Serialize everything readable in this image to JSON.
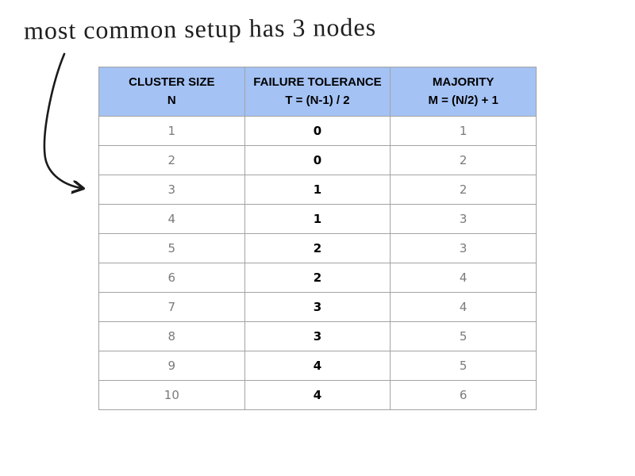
{
  "annotation": {
    "text": "most common setup has 3 nodes"
  },
  "table": {
    "headers": [
      {
        "title": "CLUSTER SIZE",
        "formula": "N"
      },
      {
        "title": "FAILURE TOLERANCE",
        "formula": "T = (N-1) / 2"
      },
      {
        "title": "MAJORITY",
        "formula": "M = (N/2) + 1"
      }
    ],
    "rows": [
      {
        "n": "1",
        "t": "0",
        "m": "1"
      },
      {
        "n": "2",
        "t": "0",
        "m": "2"
      },
      {
        "n": "3",
        "t": "1",
        "m": "2"
      },
      {
        "n": "4",
        "t": "1",
        "m": "3"
      },
      {
        "n": "5",
        "t": "2",
        "m": "3"
      },
      {
        "n": "6",
        "t": "2",
        "m": "4"
      },
      {
        "n": "7",
        "t": "3",
        "m": "4"
      },
      {
        "n": "8",
        "t": "3",
        "m": "5"
      },
      {
        "n": "9",
        "t": "4",
        "m": "5"
      },
      {
        "n": "10",
        "t": "4",
        "m": "6"
      }
    ]
  },
  "chart_data": {
    "type": "table",
    "title": "",
    "columns": [
      "CLUSTER SIZE N",
      "FAILURE TOLERANCE T = (N-1) / 2",
      "MAJORITY M = (N/2) + 1"
    ],
    "rows": [
      [
        1,
        0,
        1
      ],
      [
        2,
        0,
        2
      ],
      [
        3,
        1,
        2
      ],
      [
        4,
        1,
        3
      ],
      [
        5,
        2,
        3
      ],
      [
        6,
        2,
        4
      ],
      [
        7,
        3,
        4
      ],
      [
        8,
        3,
        5
      ],
      [
        9,
        4,
        5
      ],
      [
        10,
        4,
        6
      ]
    ],
    "annotation": "most common setup has 3 nodes",
    "annotation_points_to": "row N=3",
    "emphasized_column": "FAILURE TOLERANCE T = (N-1) / 2"
  },
  "colors": {
    "header_bg": "#a4c2f4",
    "border": "#a3a3a3",
    "muted_text": "#7a7a7a",
    "emphasis_text": "#000000",
    "annotation_text": "#1f1f1f"
  }
}
